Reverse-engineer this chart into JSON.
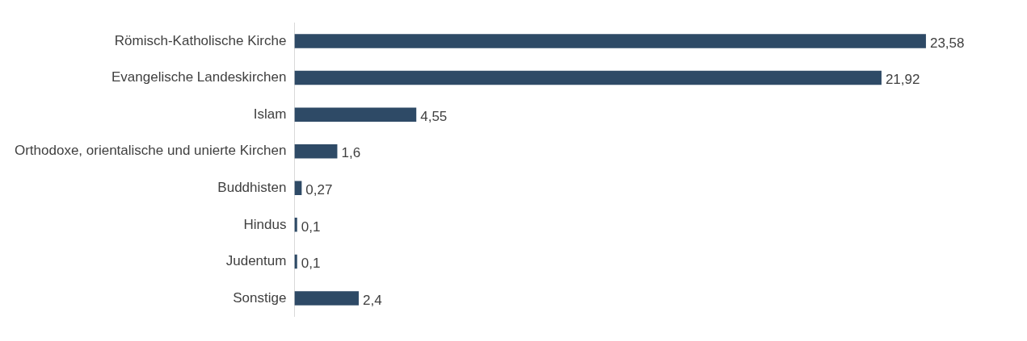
{
  "chart_data": {
    "type": "bar",
    "orientation": "horizontal",
    "categories": [
      "Römisch-Katholische Kirche",
      "Evangelische Landeskirchen",
      "Islam",
      "Orthodoxe, orientalische und unierte Kirchen",
      "Buddhisten",
      "Hindus",
      "Judentum",
      "Sonstige"
    ],
    "values": [
      23.58,
      21.92,
      4.55,
      1.6,
      0.27,
      0.1,
      0.1,
      2.4
    ],
    "value_labels": [
      "23,58",
      "21,92",
      "4,55",
      "1,6",
      "0,27",
      "0,1",
      "0,1",
      "2,4"
    ],
    "color": "#2e4a66"
  }
}
